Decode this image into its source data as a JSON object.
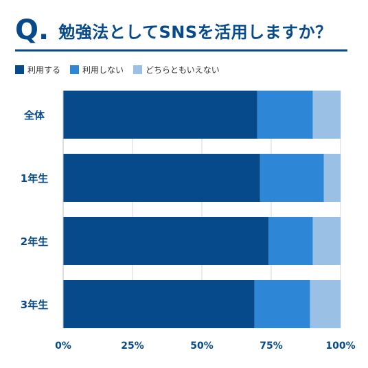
{
  "header": {
    "q": "Q",
    "dot": ".",
    "title": "勉強法としてSNSを活用しますか？"
  },
  "colors": {
    "brand": "#064a8c",
    "series": [
      "#064a8c",
      "#2e86d6",
      "#9ac0e6"
    ],
    "grid": "#d7d7d7",
    "frame": "#f0f0f0"
  },
  "chart_data": {
    "type": "bar",
    "orientation": "horizontal",
    "stacked": true,
    "title": "勉強法としてSNSを活用しますか？",
    "categories": [
      "全体",
      "1年生",
      "2年生",
      "3年生"
    ],
    "series": [
      {
        "name": "利用する",
        "values": [
          70,
          71,
          74,
          69
        ]
      },
      {
        "name": "利用しない",
        "values": [
          20,
          23,
          16,
          20
        ]
      },
      {
        "name": "どちらともいえない",
        "values": [
          10,
          6,
          10,
          11
        ]
      }
    ],
    "xlim": [
      0,
      100
    ],
    "xticks": [
      "0%",
      "25%",
      "50%",
      "75%",
      "100%"
    ],
    "grid": true,
    "legend_position": "top-left"
  }
}
